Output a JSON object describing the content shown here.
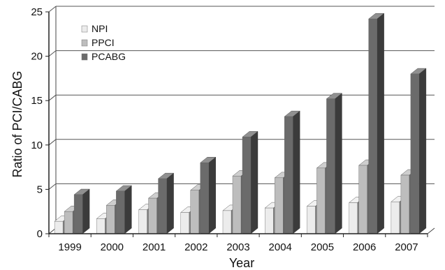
{
  "chart_data": {
    "type": "bar",
    "title": "",
    "xlabel": "Year",
    "ylabel": "Ratio of PCI/CABG",
    "ylim": [
      0,
      25
    ],
    "yticks": [
      0,
      5,
      10,
      15,
      20,
      25
    ],
    "grid": true,
    "legend_position": "top-left",
    "categories": [
      "1999",
      "2000",
      "2001",
      "2002",
      "2003",
      "2004",
      "2005",
      "2006",
      "2007"
    ],
    "series": [
      {
        "name": "NPI",
        "color": "#ececec",
        "values": [
          1.4,
          1.7,
          2.7,
          2.4,
          2.6,
          2.9,
          3.1,
          3.5,
          3.6
        ]
      },
      {
        "name": "PPCI",
        "color": "#bdbdbd",
        "values": [
          2.5,
          3.2,
          4.0,
          4.9,
          6.5,
          6.3,
          7.4,
          7.7,
          6.6
        ]
      },
      {
        "name": "PCABG",
        "color": "#6b6b6b",
        "values": [
          4.4,
          4.8,
          6.2,
          8.0,
          10.9,
          13.2,
          15.2,
          24.2,
          18.0
        ]
      }
    ]
  }
}
